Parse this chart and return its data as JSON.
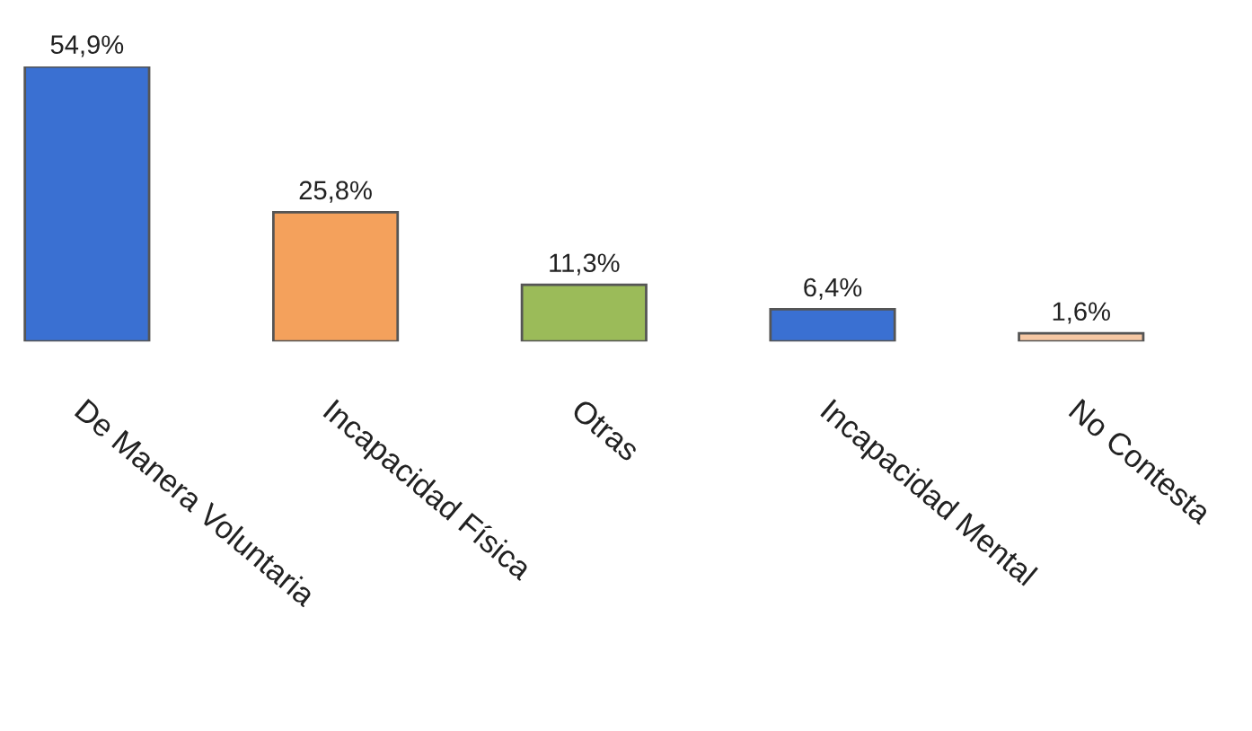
{
  "chart_data": {
    "type": "bar",
    "categories": [
      "De Manera Voluntaria",
      "Incapacidad Física",
      "Otras",
      "Incapacidad Mental",
      "No Contesta"
    ],
    "values": [
      54.9,
      25.8,
      11.3,
      6.4,
      1.6
    ],
    "value_labels": [
      "54,9%",
      "25,8%",
      "11,3%",
      "6,4%",
      "1,6%"
    ],
    "colors": [
      "#3a70d2",
      "#f4a15c",
      "#9bbb59",
      "#3a70d2",
      "#f6c8a4"
    ],
    "grid": false,
    "legend": false
  }
}
